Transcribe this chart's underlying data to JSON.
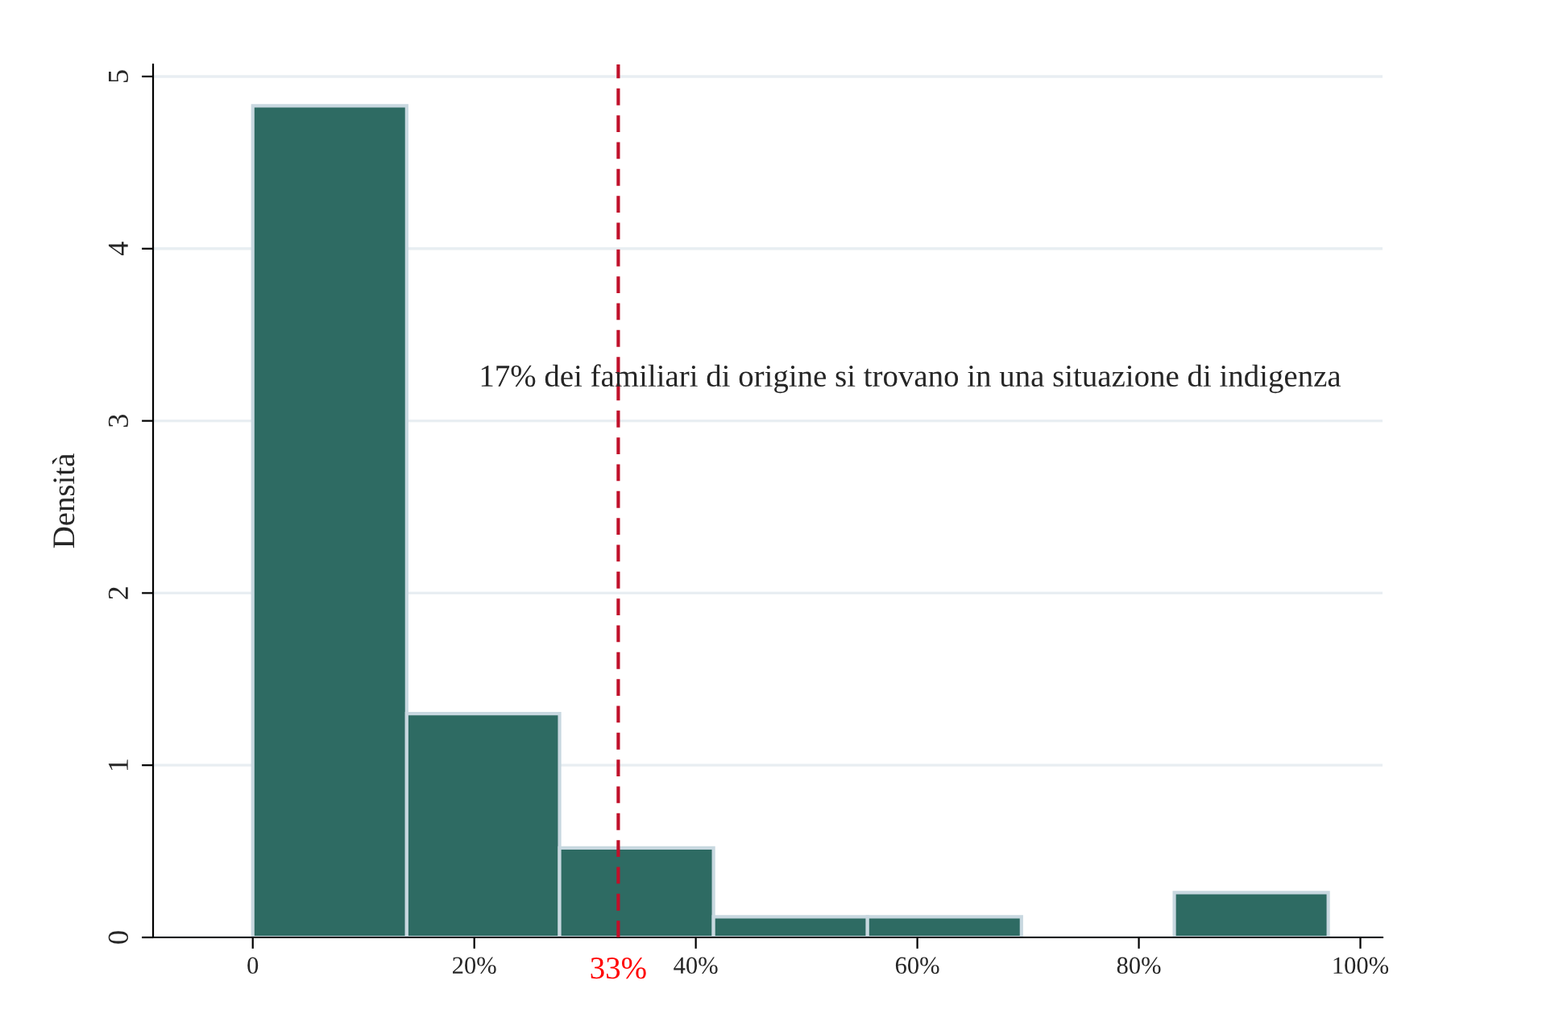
{
  "chart_data": {
    "type": "histogram",
    "ylabel": "Densità",
    "bins": [
      0,
      0.139,
      0.277,
      0.416,
      0.555,
      0.694,
      0.832,
      0.971
    ],
    "values": [
      4.83,
      1.3,
      0.52,
      0.12,
      0.12,
      0,
      0.26
    ],
    "color": "#2e6b63",
    "xlim": [
      -0.09,
      1.02
    ],
    "ylim": [
      0,
      5.07
    ],
    "xticks": [
      0,
      {
        "value": 0.2,
        "label": "20%"
      },
      {
        "value": 0.4,
        "label": "40%"
      },
      {
        "value": 0.6,
        "label": "60%"
      },
      {
        "value": 0.8,
        "label": "80%"
      },
      {
        "value": 1.0,
        "label": "100%"
      }
    ],
    "yticks": [
      0,
      1,
      2,
      3,
      4,
      5
    ],
    "grid": "y",
    "ref_lines": [
      {
        "axis": "x",
        "value": 0.33,
        "label": "33%",
        "color": "#c0102a",
        "line_style": "dashed"
      }
    ],
    "annotations": [
      "17% dei familiari di origine si trovano in una situazione di indigenza"
    ]
  }
}
